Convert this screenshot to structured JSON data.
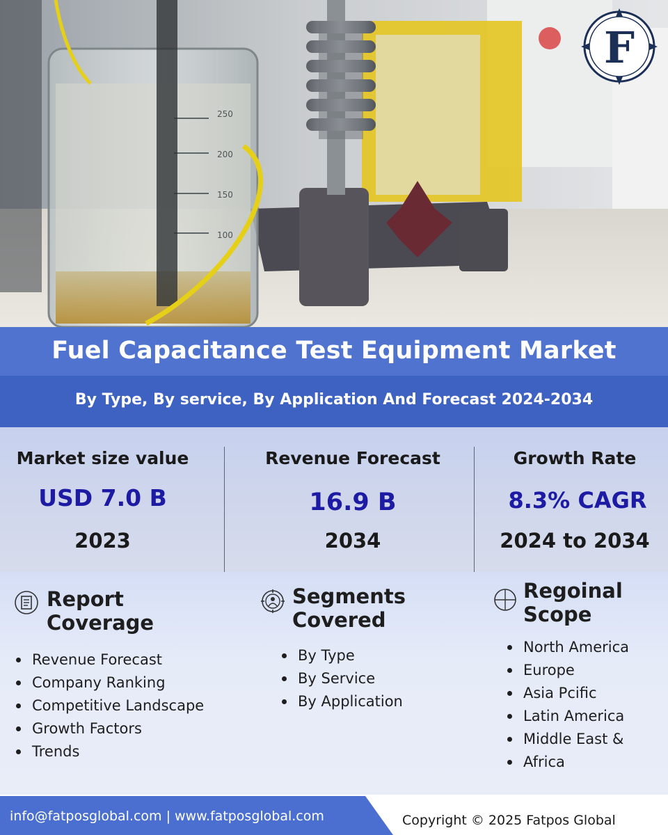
{
  "brand": {
    "logo_letter": "F",
    "logo_color": "#1b2f57"
  },
  "header": {
    "title": "Fuel Capacitance Test Equipment Market",
    "subtitle": "By Type, By service, By Application And Forecast 2024-2034"
  },
  "stats": [
    {
      "label": "Market size value",
      "value": "USD 7.0 B",
      "year": "2023"
    },
    {
      "label": "Revenue Forecast",
      "value": "16.9 B",
      "year": "2034"
    },
    {
      "label": "Growth Rate",
      "value": "8.3% CAGR",
      "year": "2024 to 2034"
    }
  ],
  "sections": {
    "report_coverage": {
      "title_line1": "Report",
      "title_line2": "Coverage",
      "icon": "document-icon",
      "items": [
        "Revenue Forecast",
        "Company Ranking",
        "Competitive Landscape",
        "Growth Factors",
        "Trends"
      ]
    },
    "segments": {
      "title_line1": "Segments",
      "title_line2": "Covered",
      "icon": "target-people-icon",
      "items": [
        "By Type",
        "By Service",
        "By Application"
      ]
    },
    "regional": {
      "title_line1": "Regoinal",
      "title_line2": "Scope",
      "icon": "crosshair-icon",
      "items": [
        "North America",
        "Europe",
        "Asia Pcific",
        "Latin America",
        "Middle East &",
        "Africa"
      ]
    }
  },
  "footer": {
    "contact": "info@fatposglobal.com | www.fatposglobal.com",
    "copyright": "Copyright © 2025 Fatpos Global"
  },
  "colors": {
    "title_band": "#4f73cf",
    "subtitle_band": "#3d62c2",
    "stat_value": "#1d1ba3",
    "footer_band": "#4a6fd0"
  }
}
